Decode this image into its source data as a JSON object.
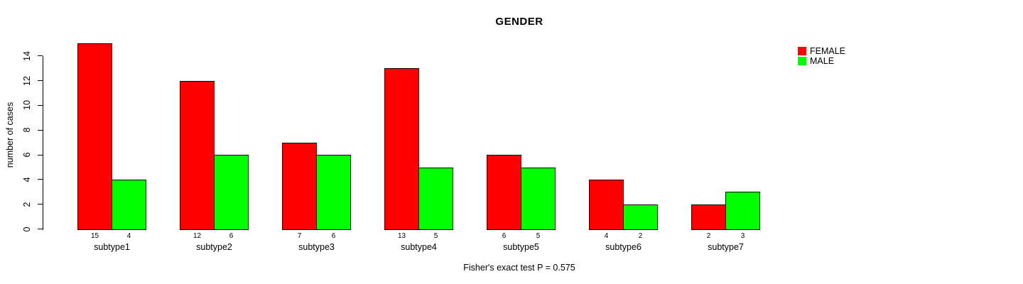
{
  "title": "GENDER",
  "footer_note": "Fisher's exact test P = 0.575",
  "y_axis": {
    "label": "number of cases",
    "ticks": [
      0,
      2,
      4,
      6,
      8,
      10,
      12,
      14
    ]
  },
  "legend": {
    "items": [
      {
        "label": "FEMALE",
        "color": "#ff0000"
      },
      {
        "label": "MALE",
        "color": "#00ff00"
      }
    ]
  },
  "chart_data": {
    "type": "bar",
    "title": "GENDER",
    "categories": [
      "subtype1",
      "subtype2",
      "subtype3",
      "subtype4",
      "subtype5",
      "subtype6",
      "subtype7"
    ],
    "series": [
      {
        "name": "FEMALE",
        "color": "#ff0000",
        "values": [
          15,
          12,
          7,
          13,
          6,
          4,
          2
        ]
      },
      {
        "name": "MALE",
        "color": "#00ff00",
        "values": [
          4,
          6,
          6,
          5,
          5,
          2,
          3
        ]
      }
    ],
    "bar_value_labels": [
      [
        15,
        4
      ],
      [
        12,
        6
      ],
      [
        7,
        6
      ],
      [
        13,
        5
      ],
      [
        6,
        5
      ],
      [
        4,
        2
      ],
      [
        2,
        3
      ]
    ],
    "xlabel": "",
    "ylabel": "number of cases",
    "ylim": [
      0,
      15
    ],
    "yticks": [
      0,
      2,
      4,
      6,
      8,
      10,
      12,
      14
    ],
    "grid": false,
    "legend_position": "top-right",
    "annotation": "Fisher's exact test P = 0.575",
    "bar_outline_color": "#000000",
    "background_color": "#ffffff"
  }
}
